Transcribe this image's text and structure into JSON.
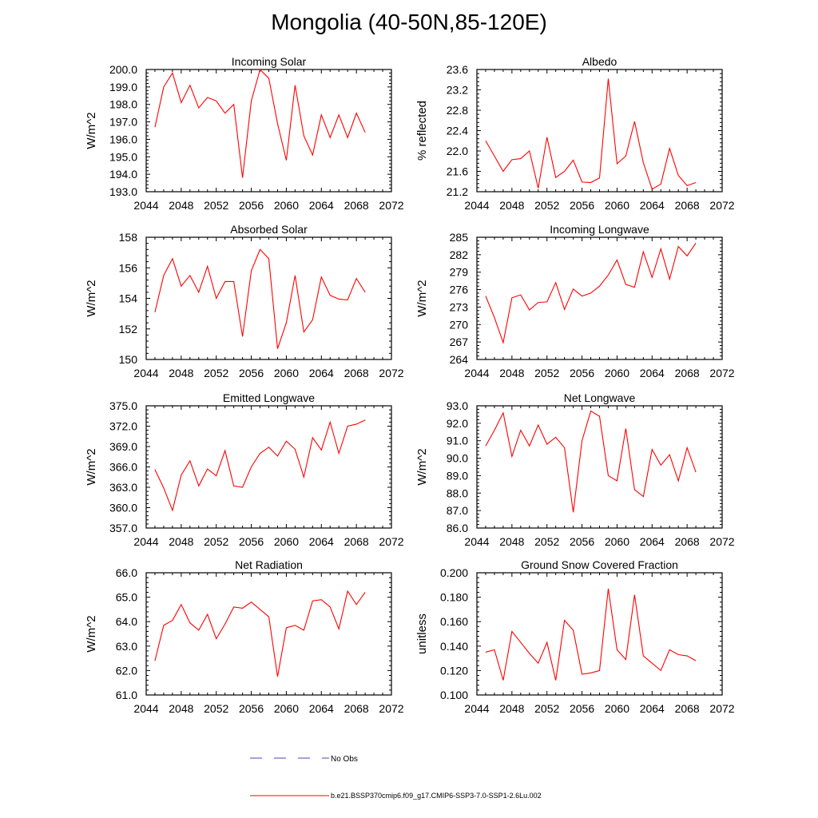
{
  "title": "Mongolia (40-50N,85-120E)",
  "colors": {
    "series": "#ff0000",
    "obs": "#4a4ab0",
    "axis": "#000000"
  },
  "legend": {
    "obs_label": "No Obs",
    "model_label": "b.e21.BSSP370cmip6.f09_g17.CMIP6-SSP3-7.0-SSP1-2.6Lu.002"
  },
  "chart_data": [
    {
      "type": "line",
      "title": "Incoming Solar",
      "ylabel": "W/m^2",
      "xlim": [
        2044,
        2072
      ],
      "ylim": [
        193.0,
        200.0
      ],
      "xticks": [
        2044,
        2048,
        2052,
        2056,
        2060,
        2064,
        2068,
        2072
      ],
      "yticks": [
        "193.0",
        "194.0",
        "195.0",
        "196.0",
        "197.0",
        "198.0",
        "199.0",
        "200.0"
      ],
      "x": [
        2045,
        2046,
        2047,
        2048,
        2049,
        2050,
        2051,
        2052,
        2053,
        2054,
        2055,
        2056,
        2057,
        2058,
        2059,
        2060,
        2061,
        2062,
        2063,
        2064,
        2065,
        2066,
        2067,
        2068,
        2069
      ],
      "series": [
        {
          "values": [
            196.7,
            199.0,
            199.8,
            198.1,
            199.1,
            197.8,
            198.4,
            198.2,
            197.5,
            198.0,
            193.8,
            198.2,
            200.0,
            199.5,
            196.9,
            194.8,
            199.1,
            196.2,
            195.1,
            197.4,
            196.1,
            197.4,
            196.1,
            197.5,
            196.4
          ]
        }
      ]
    },
    {
      "type": "line",
      "title": "Albedo",
      "ylabel": "% reflected",
      "xlim": [
        2044,
        2072
      ],
      "ylim": [
        21.2,
        23.6
      ],
      "xticks": [
        2044,
        2048,
        2052,
        2056,
        2060,
        2064,
        2068,
        2072
      ],
      "yticks": [
        "21.2",
        "21.6",
        "22.0",
        "22.4",
        "22.8",
        "23.2",
        "23.6"
      ],
      "x": [
        2045,
        2046,
        2047,
        2048,
        2049,
        2050,
        2051,
        2052,
        2053,
        2054,
        2055,
        2056,
        2057,
        2058,
        2059,
        2060,
        2061,
        2062,
        2063,
        2064,
        2065,
        2066,
        2067,
        2068,
        2069
      ],
      "series": [
        {
          "values": [
            22.2,
            21.9,
            21.6,
            21.83,
            21.85,
            22.0,
            21.27,
            22.27,
            21.48,
            21.6,
            21.82,
            21.39,
            21.38,
            21.47,
            23.42,
            21.75,
            21.9,
            22.58,
            21.77,
            21.25,
            21.35,
            22.05,
            21.52,
            21.32,
            21.38
          ]
        }
      ]
    },
    {
      "type": "line",
      "title": "Absorbed Solar",
      "ylabel": "W/m^2",
      "xlim": [
        2044,
        2072
      ],
      "ylim": [
        150,
        158
      ],
      "xticks": [
        2044,
        2048,
        2052,
        2056,
        2060,
        2064,
        2068,
        2072
      ],
      "yticks": [
        "150",
        "152",
        "154",
        "156",
        "158"
      ],
      "x": [
        2045,
        2046,
        2047,
        2048,
        2049,
        2050,
        2051,
        2052,
        2053,
        2054,
        2055,
        2056,
        2057,
        2058,
        2059,
        2060,
        2061,
        2062,
        2063,
        2064,
        2065,
        2066,
        2067,
        2068,
        2069
      ],
      "series": [
        {
          "values": [
            153.1,
            155.5,
            156.6,
            154.8,
            155.5,
            154.4,
            156.1,
            154.0,
            155.1,
            155.1,
            151.5,
            155.8,
            157.2,
            156.6,
            150.7,
            152.4,
            155.5,
            151.8,
            152.6,
            155.4,
            154.2,
            153.95,
            153.9,
            155.3,
            154.4
          ]
        }
      ]
    },
    {
      "type": "line",
      "title": "Incoming Longwave",
      "ylabel": "W/m^2",
      "xlim": [
        2044,
        2072
      ],
      "ylim": [
        264,
        285
      ],
      "xticks": [
        2044,
        2048,
        2052,
        2056,
        2060,
        2064,
        2068,
        2072
      ],
      "yticks": [
        "264",
        "267",
        "270",
        "273",
        "276",
        "279",
        "282",
        "285"
      ],
      "x": [
        2045,
        2046,
        2047,
        2048,
        2049,
        2050,
        2051,
        2052,
        2053,
        2054,
        2055,
        2056,
        2057,
        2058,
        2059,
        2060,
        2061,
        2062,
        2063,
        2064,
        2065,
        2066,
        2067,
        2068,
        2069
      ],
      "series": [
        {
          "values": [
            274.9,
            271.2,
            266.9,
            274.6,
            275.1,
            272.5,
            273.8,
            273.9,
            277.2,
            272.6,
            276.1,
            274.9,
            275.4,
            276.6,
            278.5,
            281.1,
            276.9,
            276.4,
            282.5,
            278.1,
            283.0,
            277.8,
            283.4,
            281.8,
            284.0
          ]
        }
      ]
    },
    {
      "type": "line",
      "title": "Emitted Longwave",
      "ylabel": "W/m^2",
      "xlim": [
        2044,
        2072
      ],
      "ylim": [
        357.0,
        375.0
      ],
      "xticks": [
        2044,
        2048,
        2052,
        2056,
        2060,
        2064,
        2068,
        2072
      ],
      "yticks": [
        "357.0",
        "360.0",
        "363.0",
        "366.0",
        "369.0",
        "372.0",
        "375.0"
      ],
      "x": [
        2045,
        2046,
        2047,
        2048,
        2049,
        2050,
        2051,
        2052,
        2053,
        2054,
        2055,
        2056,
        2057,
        2058,
        2059,
        2060,
        2061,
        2062,
        2063,
        2064,
        2065,
        2066,
        2067,
        2068,
        2069
      ],
      "series": [
        {
          "values": [
            365.6,
            362.9,
            359.6,
            364.8,
            366.9,
            363.2,
            365.7,
            364.7,
            368.4,
            363.2,
            363.0,
            366.0,
            368.0,
            368.9,
            367.6,
            369.8,
            368.6,
            364.5,
            370.3,
            368.5,
            372.6,
            368.0,
            372.0,
            372.3,
            372.9
          ]
        }
      ]
    },
    {
      "type": "line",
      "title": "Net Longwave",
      "ylabel": "W/m^2",
      "xlim": [
        2044,
        2072
      ],
      "ylim": [
        86.0,
        93.0
      ],
      "xticks": [
        2044,
        2048,
        2052,
        2056,
        2060,
        2064,
        2068,
        2072
      ],
      "yticks": [
        "86.0",
        "87.0",
        "88.0",
        "89.0",
        "90.0",
        "91.0",
        "92.0",
        "93.0"
      ],
      "x": [
        2045,
        2046,
        2047,
        2048,
        2049,
        2050,
        2051,
        2052,
        2053,
        2054,
        2055,
        2056,
        2057,
        2058,
        2059,
        2060,
        2061,
        2062,
        2063,
        2064,
        2065,
        2066,
        2067,
        2068,
        2069
      ],
      "series": [
        {
          "values": [
            90.7,
            91.6,
            92.6,
            90.1,
            91.6,
            90.7,
            91.9,
            90.8,
            91.2,
            90.6,
            86.9,
            91.0,
            92.7,
            92.4,
            89.0,
            88.7,
            91.7,
            88.2,
            87.8,
            90.5,
            89.6,
            90.2,
            88.7,
            90.6,
            89.2
          ]
        }
      ]
    },
    {
      "type": "line",
      "title": "Net Radiation",
      "ylabel": "W/m^2",
      "xlim": [
        2044,
        2072
      ],
      "ylim": [
        61.0,
        66.0
      ],
      "xticks": [
        2044,
        2048,
        2052,
        2056,
        2060,
        2064,
        2068,
        2072
      ],
      "yticks": [
        "61.0",
        "62.0",
        "63.0",
        "64.0",
        "65.0",
        "66.0"
      ],
      "x": [
        2045,
        2046,
        2047,
        2048,
        2049,
        2050,
        2051,
        2052,
        2053,
        2054,
        2055,
        2056,
        2057,
        2058,
        2059,
        2060,
        2061,
        2062,
        2063,
        2064,
        2065,
        2066,
        2067,
        2068,
        2069
      ],
      "series": [
        {
          "values": [
            62.4,
            63.85,
            64.05,
            64.7,
            63.95,
            63.65,
            64.3,
            63.3,
            63.9,
            64.6,
            64.55,
            64.8,
            64.5,
            64.2,
            61.75,
            63.75,
            63.85,
            63.65,
            64.85,
            64.9,
            64.6,
            63.7,
            65.25,
            64.7,
            65.2
          ]
        }
      ]
    },
    {
      "type": "line",
      "title": "Ground Snow Covered Fraction",
      "ylabel": "unitless",
      "xlim": [
        2044,
        2072
      ],
      "ylim": [
        0.1,
        0.2
      ],
      "xticks": [
        2044,
        2048,
        2052,
        2056,
        2060,
        2064,
        2068,
        2072
      ],
      "yticks": [
        "0.100",
        "0.120",
        "0.140",
        "0.160",
        "0.180",
        "0.200"
      ],
      "x": [
        2045,
        2046,
        2047,
        2048,
        2049,
        2050,
        2051,
        2052,
        2053,
        2054,
        2055,
        2056,
        2057,
        2058,
        2059,
        2060,
        2061,
        2062,
        2063,
        2064,
        2065,
        2066,
        2067,
        2068,
        2069
      ],
      "series": [
        {
          "values": [
            0.135,
            0.137,
            0.112,
            0.152,
            0.143,
            0.134,
            0.126,
            0.143,
            0.112,
            0.161,
            0.153,
            0.117,
            0.118,
            0.12,
            0.187,
            0.137,
            0.129,
            0.182,
            0.132,
            0.126,
            0.12,
            0.137,
            0.133,
            0.132,
            0.128
          ]
        }
      ]
    }
  ]
}
